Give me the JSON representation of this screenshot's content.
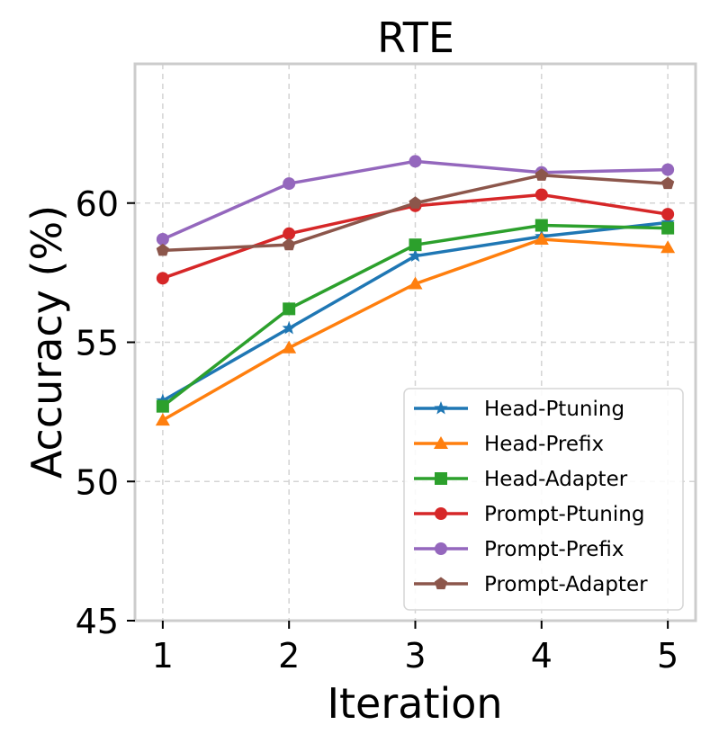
{
  "chart_data": {
    "type": "line",
    "title": "RTE",
    "xlabel": "Iteration",
    "ylabel": "Accuracy (%)",
    "x": [
      1,
      2,
      3,
      4,
      5
    ],
    "xlim": [
      0.78,
      5.22
    ],
    "ylim": [
      45,
      65
    ],
    "xticks": [
      "1",
      "2",
      "3",
      "4",
      "5"
    ],
    "yticks": [
      "45",
      "50",
      "55",
      "60"
    ],
    "grid": true,
    "legend_position": "lower-right",
    "series": [
      {
        "name": "Head-Ptuning",
        "color": "#1f77b4",
        "marker": "star",
        "values": [
          52.9,
          55.5,
          58.1,
          58.8,
          59.3
        ]
      },
      {
        "name": "Head-Prefix",
        "color": "#ff7f0e",
        "marker": "triangle",
        "values": [
          52.2,
          54.8,
          57.1,
          58.7,
          58.4
        ]
      },
      {
        "name": "Head-Adapter",
        "color": "#2ca02c",
        "marker": "square",
        "values": [
          52.7,
          56.2,
          58.5,
          59.2,
          59.1
        ]
      },
      {
        "name": "Prompt-Ptuning",
        "color": "#d62728",
        "marker": "circle",
        "values": [
          57.3,
          58.9,
          59.9,
          60.3,
          59.6
        ]
      },
      {
        "name": "Prompt-Prefix",
        "color": "#9467bd",
        "marker": "circle",
        "values": [
          58.7,
          60.7,
          61.5,
          61.1,
          61.2
        ]
      },
      {
        "name": "Prompt-Adapter",
        "color": "#8c564b",
        "marker": "pentagon",
        "values": [
          58.3,
          58.5,
          60.0,
          61.0,
          60.7
        ]
      }
    ]
  }
}
